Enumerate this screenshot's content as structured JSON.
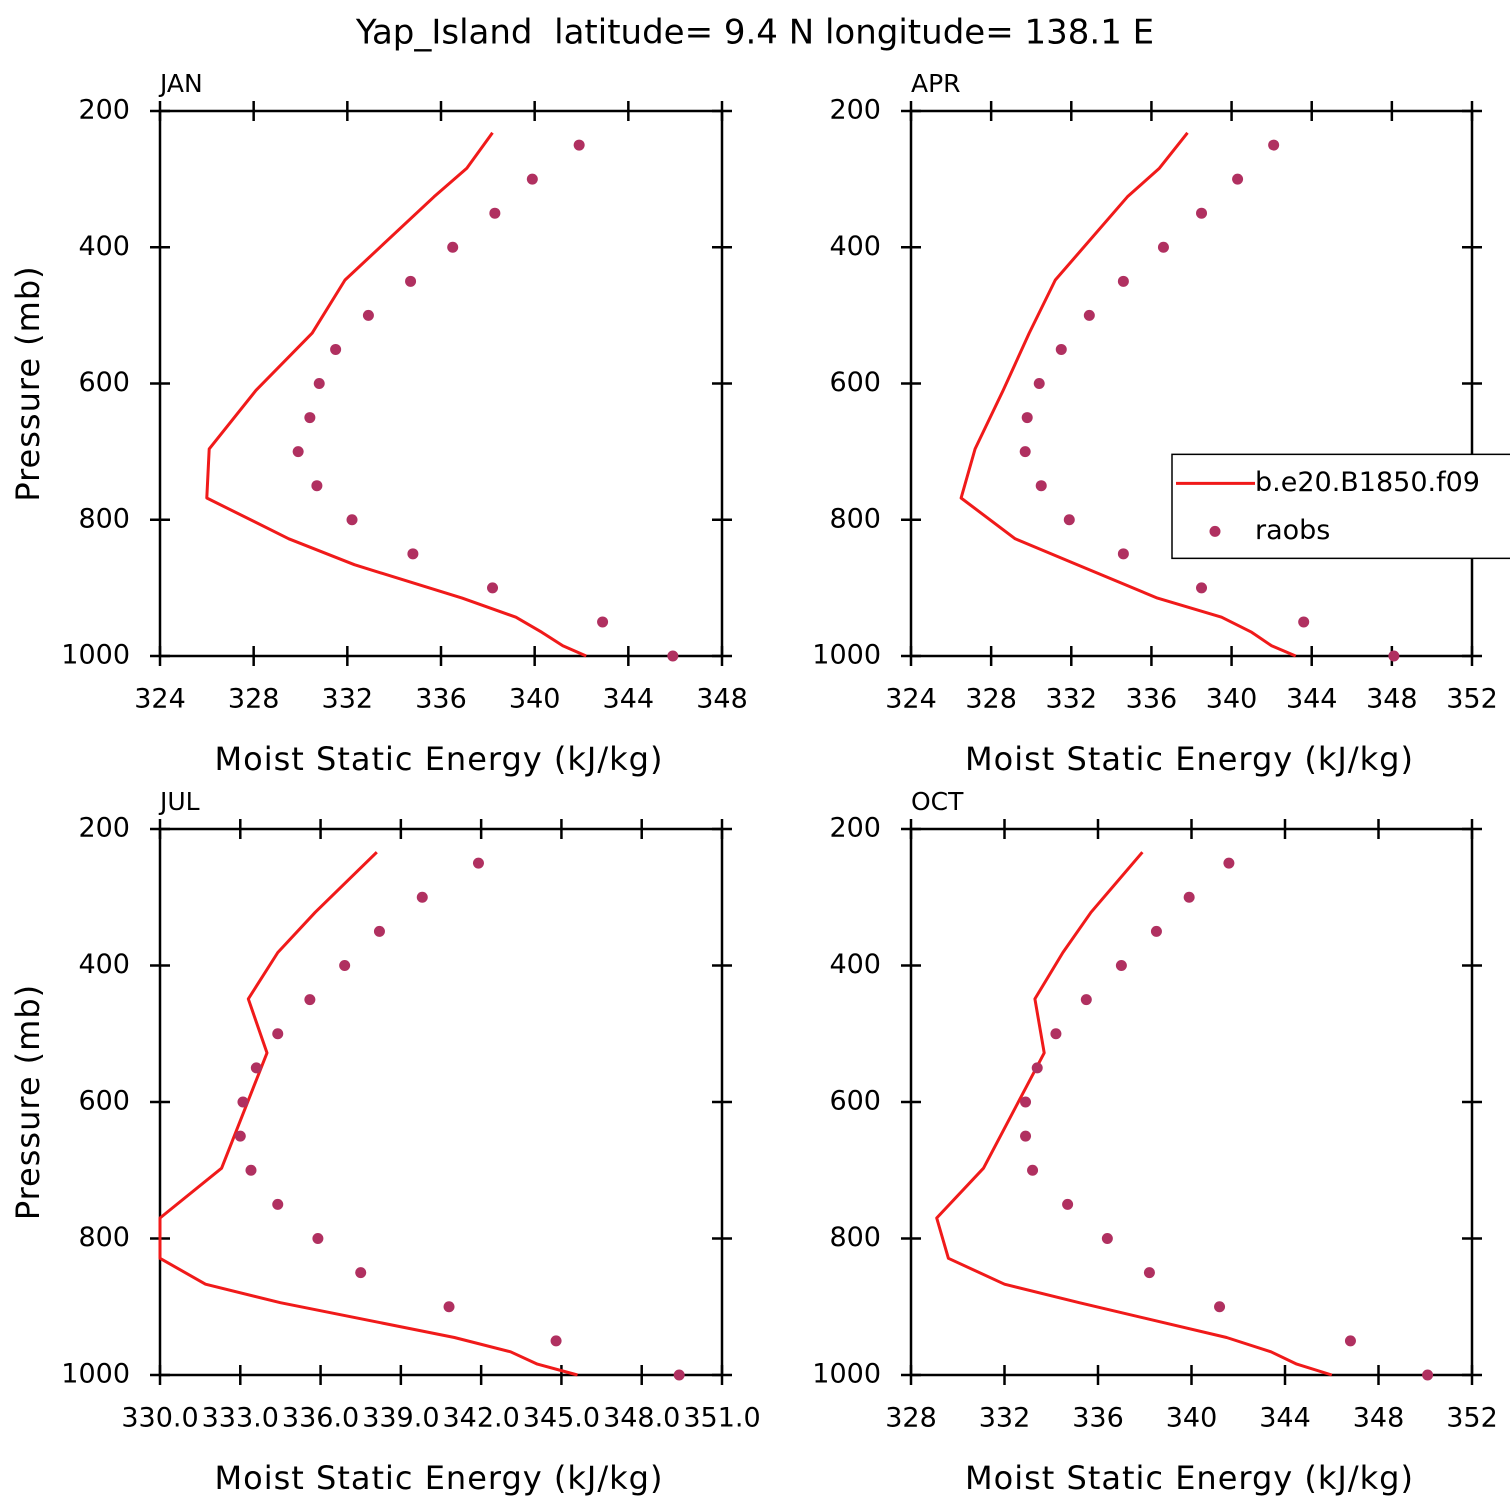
{
  "title": "Yap_Island  latitude= 9.4 N longitude= 138.1 E",
  "chart_data": [
    {
      "type": "line",
      "title": "JAN",
      "xlabel": "Moist Static Energy (kJ/kg)",
      "ylabel": "Pressure (mb)",
      "xlim": [
        324,
        348
      ],
      "xticks": [
        324,
        328,
        332,
        336,
        340,
        344,
        348
      ],
      "ylim": [
        1000,
        200
      ],
      "yticks": [
        200,
        400,
        600,
        800,
        1000
      ],
      "series": [
        {
          "color": "#f01a1a",
          "mode": "line",
          "x": [
            338.2,
            337.1,
            335.7,
            331.9,
            330.5,
            328.1,
            326.1,
            326.0,
            329.5,
            332.3,
            336.9,
            339.2,
            340.3,
            341.2,
            342.2
          ],
          "y": [
            232,
            284,
            326,
            448,
            526,
            610,
            696,
            768,
            828,
            866,
            915,
            943,
            965,
            985,
            1000
          ]
        },
        {
          "color": "#b03060",
          "mode": "markers",
          "x": [
            341.9,
            339.9,
            338.3,
            336.5,
            334.7,
            332.9,
            331.5,
            330.8,
            330.4,
            329.9,
            330.7,
            332.2,
            334.8,
            338.2,
            342.9,
            345.9
          ],
          "y": [
            250,
            300,
            350,
            400,
            450,
            500,
            550,
            600,
            650,
            700,
            750,
            800,
            850,
            900,
            950,
            1000
          ]
        }
      ]
    },
    {
      "type": "line",
      "title": "APR",
      "xlabel": "Moist Static Energy (kJ/kg)",
      "legend": "right",
      "xlim": [
        324,
        352
      ],
      "xticks": [
        324,
        328,
        332,
        336,
        340,
        344,
        348,
        352
      ],
      "ylim": [
        1000,
        200
      ],
      "yticks": [
        200,
        400,
        600,
        800,
        1000
      ],
      "series": [
        {
          "name": "b.e20.B1850.f09",
          "color": "#f01a1a",
          "mode": "line",
          "x": [
            337.8,
            336.4,
            334.8,
            331.2,
            329.9,
            328.6,
            327.2,
            326.5,
            329.2,
            332.3,
            336.3,
            339.5,
            341.0,
            342.0,
            343.2
          ],
          "y": [
            232,
            284,
            326,
            448,
            526,
            610,
            696,
            768,
            828,
            866,
            915,
            943,
            965,
            985,
            1000
          ]
        },
        {
          "name": "raobs",
          "color": "#b03060",
          "mode": "markers",
          "x": [
            342.1,
            340.3,
            338.5,
            336.6,
            334.6,
            332.9,
            331.5,
            330.4,
            329.8,
            329.7,
            330.5,
            331.9,
            334.6,
            338.5,
            343.6,
            348.1
          ],
          "y": [
            250,
            300,
            350,
            400,
            450,
            500,
            550,
            600,
            650,
            700,
            750,
            800,
            850,
            900,
            950,
            1000
          ]
        }
      ]
    },
    {
      "type": "line",
      "title": "JUL",
      "xlabel": "Moist Static Energy (kJ/kg)",
      "ylabel": "Pressure (mb)",
      "xlim": [
        330,
        351
      ],
      "xticks": [
        {
          "value": 330,
          "label": "330.0"
        },
        {
          "value": 333,
          "label": "333.0"
        },
        {
          "value": 336,
          "label": "336.0"
        },
        {
          "value": 339,
          "label": "339.0"
        },
        {
          "value": 342,
          "label": "342.0"
        },
        {
          "value": 345,
          "label": "345.0"
        },
        {
          "value": 348,
          "label": "348.0"
        },
        {
          "value": 351,
          "label": "351.0"
        }
      ],
      "ylim": [
        1000,
        200
      ],
      "yticks": [
        200,
        400,
        600,
        800,
        1000
      ],
      "series": [
        {
          "color": "#f01a1a",
          "mode": "line",
          "x": [
            338.1,
            335.8,
            334.4,
            333.3,
            334.0,
            332.3,
            330.0,
            330.0,
            331.7,
            334.5,
            341.0,
            343.1,
            344.1,
            345.6
          ],
          "y": [
            234,
            322,
            381,
            449,
            528,
            697,
            770,
            829,
            867,
            894,
            945,
            966,
            984,
            1000
          ]
        },
        {
          "color": "#b03060",
          "mode": "markers",
          "x": [
            341.9,
            339.8,
            338.2,
            336.9,
            335.6,
            334.4,
            333.6,
            333.1,
            333.0,
            333.4,
            334.4,
            335.9,
            337.5,
            340.8,
            344.8,
            349.4
          ],
          "y": [
            250,
            300,
            350,
            400,
            450,
            500,
            550,
            600,
            650,
            700,
            750,
            800,
            850,
            900,
            950,
            1000
          ]
        }
      ]
    },
    {
      "type": "line",
      "title": "OCT",
      "xlabel": "Moist Static Energy (kJ/kg)",
      "xlim": [
        328,
        352
      ],
      "xticks": [
        328,
        332,
        336,
        340,
        344,
        348,
        352
      ],
      "ylim": [
        1000,
        200
      ],
      "yticks": [
        200,
        400,
        600,
        800,
        1000
      ],
      "series": [
        {
          "color": "#f01a1a",
          "mode": "line",
          "x": [
            337.9,
            335.7,
            334.5,
            333.3,
            333.7,
            331.1,
            329.1,
            329.6,
            332.0,
            335.2,
            341.5,
            343.4,
            344.5,
            346.0
          ],
          "y": [
            234,
            322,
            381,
            449,
            528,
            697,
            770,
            829,
            867,
            894,
            945,
            966,
            984,
            1000
          ]
        },
        {
          "color": "#b03060",
          "mode": "markers",
          "x": [
            341.6,
            339.9,
            338.5,
            337.0,
            335.5,
            334.2,
            333.4,
            332.9,
            332.9,
            333.2,
            334.7,
            336.4,
            338.2,
            341.2,
            346.8,
            350.1
          ],
          "y": [
            250,
            300,
            350,
            400,
            450,
            500,
            550,
            600,
            650,
            700,
            750,
            800,
            850,
            900,
            950,
            1000
          ]
        }
      ]
    }
  ]
}
